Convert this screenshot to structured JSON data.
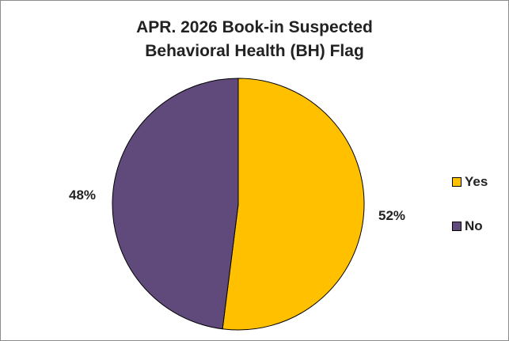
{
  "chart_data": {
    "type": "pie",
    "title_lines": [
      "APR. 2026 Book-in Suspected",
      "Behavioral Health (BH) Flag"
    ],
    "slices": [
      {
        "name": "Yes",
        "value": 52,
        "label": "52%",
        "color": "#FFC000"
      },
      {
        "name": "No",
        "value": 48,
        "label": "48%",
        "color": "#604A7B"
      }
    ],
    "legend": {
      "position": "right",
      "entries": [
        "Yes",
        "No"
      ]
    }
  }
}
